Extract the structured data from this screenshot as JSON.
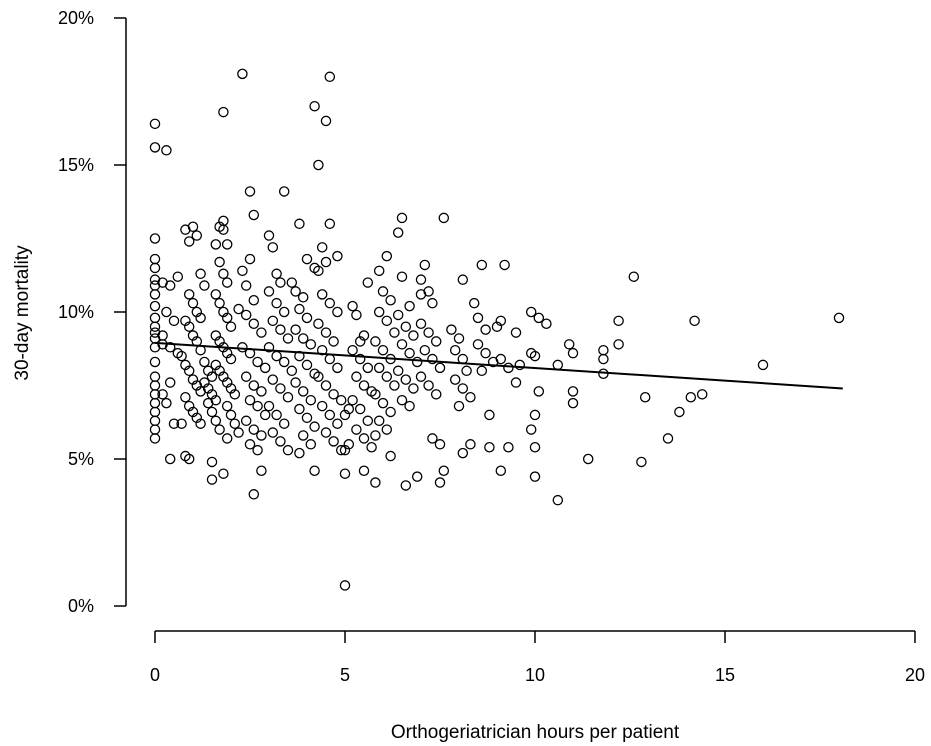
{
  "chart_data": {
    "type": "scatter",
    "title": "",
    "xlabel": "Orthogeriatrician hours per patient",
    "ylabel": "30-day mortality",
    "xlim": [
      0,
      20
    ],
    "ylim": [
      0,
      20
    ],
    "x_ticks": [
      "0",
      "5",
      "10",
      "15",
      "20"
    ],
    "y_ticks": [
      "0%",
      "5%",
      "10%",
      "15%",
      "20%"
    ],
    "grid": false,
    "legend": "none",
    "trendline": {
      "x": [
        0,
        18.1
      ],
      "y": [
        8.95,
        7.4
      ]
    },
    "points": [
      [
        0.0,
        16.4
      ],
      [
        0.0,
        15.6
      ],
      [
        0.3,
        15.5
      ],
      [
        0.0,
        12.5
      ],
      [
        0.0,
        11.8
      ],
      [
        0.0,
        11.5
      ],
      [
        0.0,
        11.1
      ],
      [
        0.0,
        10.9
      ],
      [
        0.0,
        10.6
      ],
      [
        0.0,
        10.2
      ],
      [
        0.0,
        9.8
      ],
      [
        0.0,
        9.5
      ],
      [
        0.0,
        9.3
      ],
      [
        0.0,
        9.1
      ],
      [
        0.0,
        8.8
      ],
      [
        0.0,
        8.3
      ],
      [
        0.0,
        7.8
      ],
      [
        0.0,
        7.5
      ],
      [
        0.0,
        7.2
      ],
      [
        0.0,
        6.9
      ],
      [
        0.0,
        6.6
      ],
      [
        0.0,
        6.3
      ],
      [
        0.0,
        6.0
      ],
      [
        0.0,
        5.7
      ],
      [
        0.2,
        11.0
      ],
      [
        0.4,
        10.9
      ],
      [
        0.6,
        11.2
      ],
      [
        0.3,
        10.0
      ],
      [
        0.5,
        9.7
      ],
      [
        0.2,
        9.2
      ],
      [
        0.4,
        8.8
      ],
      [
        0.6,
        8.6
      ],
      [
        0.2,
        8.9
      ],
      [
        0.4,
        7.6
      ],
      [
        0.2,
        7.2
      ],
      [
        0.3,
        6.9
      ],
      [
        0.5,
        6.2
      ],
      [
        0.4,
        5.0
      ],
      [
        0.7,
        6.2
      ],
      [
        0.8,
        5.1
      ],
      [
        0.9,
        5.0
      ],
      [
        0.8,
        12.8
      ],
      [
        0.9,
        12.4
      ],
      [
        1.0,
        12.9
      ],
      [
        1.1,
        12.6
      ],
      [
        1.2,
        11.3
      ],
      [
        1.3,
        10.9
      ],
      [
        0.9,
        10.6
      ],
      [
        1.0,
        10.3
      ],
      [
        1.1,
        10.0
      ],
      [
        1.2,
        9.8
      ],
      [
        0.8,
        9.7
      ],
      [
        0.9,
        9.5
      ],
      [
        1.0,
        9.2
      ],
      [
        1.1,
        9.0
      ],
      [
        1.2,
        8.7
      ],
      [
        0.7,
        8.5
      ],
      [
        0.8,
        8.2
      ],
      [
        0.9,
        8.0
      ],
      [
        1.0,
        7.7
      ],
      [
        1.1,
        7.5
      ],
      [
        1.2,
        7.3
      ],
      [
        0.8,
        7.1
      ],
      [
        0.9,
        6.8
      ],
      [
        1.0,
        6.6
      ],
      [
        1.1,
        6.4
      ],
      [
        1.2,
        6.2
      ],
      [
        1.3,
        8.3
      ],
      [
        1.4,
        8.0
      ],
      [
        1.5,
        7.8
      ],
      [
        1.3,
        7.6
      ],
      [
        1.4,
        7.4
      ],
      [
        1.5,
        7.2
      ],
      [
        1.6,
        7.0
      ],
      [
        1.4,
        6.9
      ],
      [
        1.5,
        6.6
      ],
      [
        1.6,
        6.3
      ],
      [
        1.7,
        6.0
      ],
      [
        1.5,
        4.9
      ],
      [
        1.5,
        4.3
      ],
      [
        1.7,
        12.9
      ],
      [
        1.8,
        13.1
      ],
      [
        1.8,
        12.8
      ],
      [
        1.6,
        12.3
      ],
      [
        1.9,
        12.3
      ],
      [
        1.7,
        11.7
      ],
      [
        1.8,
        11.3
      ],
      [
        1.9,
        11.0
      ],
      [
        1.6,
        10.6
      ],
      [
        1.7,
        10.3
      ],
      [
        1.8,
        10.0
      ],
      [
        1.9,
        9.8
      ],
      [
        2.0,
        9.5
      ],
      [
        1.6,
        9.2
      ],
      [
        1.7,
        9.0
      ],
      [
        1.8,
        8.8
      ],
      [
        1.9,
        8.6
      ],
      [
        2.0,
        8.4
      ],
      [
        1.6,
        8.2
      ],
      [
        1.7,
        8.0
      ],
      [
        1.8,
        7.8
      ],
      [
        1.9,
        7.6
      ],
      [
        2.0,
        7.4
      ],
      [
        2.1,
        7.2
      ],
      [
        1.9,
        6.8
      ],
      [
        2.0,
        6.5
      ],
      [
        2.1,
        6.2
      ],
      [
        2.2,
        5.9
      ],
      [
        1.9,
        5.7
      ],
      [
        1.8,
        4.5
      ],
      [
        2.3,
        18.1
      ],
      [
        1.8,
        16.8
      ],
      [
        2.5,
        14.1
      ],
      [
        2.6,
        13.3
      ],
      [
        2.3,
        11.4
      ],
      [
        2.5,
        11.8
      ],
      [
        2.4,
        10.9
      ],
      [
        2.6,
        10.4
      ],
      [
        2.2,
        10.1
      ],
      [
        2.4,
        9.9
      ],
      [
        2.6,
        9.6
      ],
      [
        2.8,
        9.3
      ],
      [
        2.3,
        8.8
      ],
      [
        2.5,
        8.6
      ],
      [
        2.7,
        8.3
      ],
      [
        2.9,
        8.1
      ],
      [
        2.4,
        7.8
      ],
      [
        2.6,
        7.5
      ],
      [
        2.8,
        7.3
      ],
      [
        2.5,
        7.0
      ],
      [
        2.7,
        6.8
      ],
      [
        2.9,
        6.5
      ],
      [
        2.4,
        6.3
      ],
      [
        2.6,
        6.0
      ],
      [
        2.8,
        5.8
      ],
      [
        2.5,
        5.5
      ],
      [
        2.7,
        5.3
      ],
      [
        2.8,
        4.6
      ],
      [
        2.6,
        3.8
      ],
      [
        3.0,
        12.6
      ],
      [
        3.1,
        12.2
      ],
      [
        3.2,
        11.3
      ],
      [
        3.3,
        11.0
      ],
      [
        3.0,
        10.7
      ],
      [
        3.2,
        10.3
      ],
      [
        3.4,
        10.0
      ],
      [
        3.1,
        9.7
      ],
      [
        3.3,
        9.4
      ],
      [
        3.5,
        9.1
      ],
      [
        3.0,
        8.8
      ],
      [
        3.2,
        8.5
      ],
      [
        3.4,
        8.3
      ],
      [
        3.6,
        8.0
      ],
      [
        3.1,
        7.7
      ],
      [
        3.3,
        7.4
      ],
      [
        3.5,
        7.1
      ],
      [
        3.0,
        6.8
      ],
      [
        3.2,
        6.5
      ],
      [
        3.4,
        6.2
      ],
      [
        3.1,
        5.9
      ],
      [
        3.3,
        5.6
      ],
      [
        3.5,
        5.3
      ],
      [
        3.4,
        14.1
      ],
      [
        3.6,
        11.0
      ],
      [
        3.7,
        10.7
      ],
      [
        3.9,
        10.5
      ],
      [
        3.8,
        10.1
      ],
      [
        4.0,
        9.8
      ],
      [
        3.7,
        9.4
      ],
      [
        3.9,
        9.1
      ],
      [
        4.1,
        8.9
      ],
      [
        3.8,
        8.5
      ],
      [
        4.0,
        8.2
      ],
      [
        4.2,
        7.9
      ],
      [
        3.7,
        7.6
      ],
      [
        3.9,
        7.3
      ],
      [
        4.1,
        7.0
      ],
      [
        3.8,
        6.7
      ],
      [
        4.0,
        6.4
      ],
      [
        4.2,
        6.1
      ],
      [
        3.9,
        5.8
      ],
      [
        4.1,
        5.5
      ],
      [
        3.8,
        5.2
      ],
      [
        4.2,
        4.6
      ],
      [
        3.8,
        13.0
      ],
      [
        4.0,
        11.8
      ],
      [
        4.2,
        11.5
      ],
      [
        4.2,
        17.0
      ],
      [
        4.3,
        15.0
      ],
      [
        4.5,
        16.5
      ],
      [
        4.6,
        18.0
      ],
      [
        4.6,
        13.0
      ],
      [
        4.4,
        12.2
      ],
      [
        4.5,
        11.7
      ],
      [
        4.3,
        11.4
      ],
      [
        4.4,
        10.6
      ],
      [
        4.6,
        10.3
      ],
      [
        4.8,
        10.0
      ],
      [
        4.3,
        9.6
      ],
      [
        4.5,
        9.3
      ],
      [
        4.7,
        9.0
      ],
      [
        4.4,
        8.7
      ],
      [
        4.6,
        8.4
      ],
      [
        4.8,
        8.1
      ],
      [
        4.3,
        7.8
      ],
      [
        4.5,
        7.5
      ],
      [
        4.7,
        7.2
      ],
      [
        4.9,
        7.0
      ],
      [
        4.4,
        6.8
      ],
      [
        4.6,
        6.5
      ],
      [
        4.8,
        6.2
      ],
      [
        4.5,
        5.9
      ],
      [
        4.7,
        5.6
      ],
      [
        4.9,
        5.3
      ],
      [
        4.8,
        11.9
      ],
      [
        5.0,
        6.5
      ],
      [
        5.1,
        6.7
      ],
      [
        5.0,
        5.3
      ],
      [
        5.1,
        5.5
      ],
      [
        5.0,
        4.5
      ],
      [
        5.0,
        0.7
      ],
      [
        5.2,
        10.2
      ],
      [
        5.3,
        9.9
      ],
      [
        5.4,
        9.0
      ],
      [
        5.5,
        9.2
      ],
      [
        5.2,
        8.7
      ],
      [
        5.4,
        8.4
      ],
      [
        5.6,
        8.1
      ],
      [
        5.3,
        7.8
      ],
      [
        5.5,
        7.5
      ],
      [
        5.7,
        7.3
      ],
      [
        5.2,
        7.0
      ],
      [
        5.4,
        6.7
      ],
      [
        5.6,
        6.3
      ],
      [
        5.3,
        6.0
      ],
      [
        5.5,
        5.7
      ],
      [
        5.7,
        5.4
      ],
      [
        5.5,
        4.6
      ],
      [
        5.8,
        4.2
      ],
      [
        5.9,
        11.4
      ],
      [
        6.1,
        11.9
      ],
      [
        5.6,
        11.0
      ],
      [
        6.0,
        10.7
      ],
      [
        6.2,
        10.4
      ],
      [
        5.9,
        10.0
      ],
      [
        6.1,
        9.7
      ],
      [
        6.3,
        9.3
      ],
      [
        5.8,
        9.0
      ],
      [
        6.0,
        8.7
      ],
      [
        6.2,
        8.4
      ],
      [
        5.9,
        8.1
      ],
      [
        6.1,
        7.8
      ],
      [
        6.3,
        7.5
      ],
      [
        5.8,
        7.2
      ],
      [
        6.0,
        6.9
      ],
      [
        6.2,
        6.6
      ],
      [
        5.9,
        6.3
      ],
      [
        6.1,
        6.0
      ],
      [
        5.8,
        5.8
      ],
      [
        6.2,
        5.1
      ],
      [
        6.5,
        13.2
      ],
      [
        6.4,
        12.7
      ],
      [
        6.5,
        11.2
      ],
      [
        6.7,
        10.2
      ],
      [
        6.4,
        9.9
      ],
      [
        6.6,
        9.5
      ],
      [
        6.8,
        9.2
      ],
      [
        6.5,
        8.9
      ],
      [
        6.7,
        8.6
      ],
      [
        6.9,
        8.3
      ],
      [
        6.4,
        8.0
      ],
      [
        6.6,
        7.7
      ],
      [
        6.8,
        7.4
      ],
      [
        6.5,
        7.0
      ],
      [
        6.7,
        6.8
      ],
      [
        6.6,
        4.1
      ],
      [
        6.9,
        4.4
      ],
      [
        7.0,
        11.1
      ],
      [
        7.1,
        11.6
      ],
      [
        7.2,
        10.7
      ],
      [
        7.0,
        10.6
      ],
      [
        7.3,
        10.3
      ],
      [
        7.0,
        9.6
      ],
      [
        7.2,
        9.3
      ],
      [
        7.4,
        9.0
      ],
      [
        7.1,
        8.7
      ],
      [
        7.3,
        8.4
      ],
      [
        7.5,
        8.1
      ],
      [
        7.0,
        7.8
      ],
      [
        7.2,
        7.5
      ],
      [
        7.4,
        7.2
      ],
      [
        7.3,
        5.7
      ],
      [
        7.5,
        5.5
      ],
      [
        7.6,
        4.6
      ],
      [
        7.5,
        4.2
      ],
      [
        7.6,
        13.2
      ],
      [
        7.8,
        9.4
      ],
      [
        8.0,
        9.1
      ],
      [
        7.9,
        8.7
      ],
      [
        8.1,
        8.4
      ],
      [
        8.2,
        8.0
      ],
      [
        7.9,
        7.7
      ],
      [
        8.1,
        7.4
      ],
      [
        8.3,
        7.1
      ],
      [
        8.0,
        6.8
      ],
      [
        8.1,
        11.1
      ],
      [
        8.1,
        5.2
      ],
      [
        8.3,
        5.5
      ],
      [
        8.4,
        10.3
      ],
      [
        8.6,
        11.6
      ],
      [
        8.5,
        9.8
      ],
      [
        8.7,
        9.4
      ],
      [
        8.5,
        8.9
      ],
      [
        8.7,
        8.6
      ],
      [
        8.9,
        8.3
      ],
      [
        8.6,
        8.0
      ],
      [
        8.8,
        6.5
      ],
      [
        8.8,
        5.4
      ],
      [
        9.0,
        9.5
      ],
      [
        9.1,
        9.7
      ],
      [
        9.2,
        11.6
      ],
      [
        9.1,
        8.4
      ],
      [
        9.3,
        8.1
      ],
      [
        9.1,
        4.6
      ],
      [
        9.3,
        5.4
      ],
      [
        9.5,
        9.3
      ],
      [
        9.6,
        8.2
      ],
      [
        9.5,
        7.6
      ],
      [
        9.9,
        10.0
      ],
      [
        9.9,
        8.6
      ],
      [
        10.0,
        8.5
      ],
      [
        10.1,
        9.8
      ],
      [
        10.1,
        7.3
      ],
      [
        10.0,
        6.5
      ],
      [
        9.9,
        6.0
      ],
      [
        10.0,
        5.4
      ],
      [
        10.0,
        4.4
      ],
      [
        10.3,
        9.6
      ],
      [
        10.6,
        8.2
      ],
      [
        10.6,
        3.6
      ],
      [
        10.9,
        8.9
      ],
      [
        11.0,
        8.6
      ],
      [
        11.0,
        7.3
      ],
      [
        11.0,
        6.9
      ],
      [
        11.4,
        5.0
      ],
      [
        11.8,
        8.7
      ],
      [
        11.8,
        8.4
      ],
      [
        11.8,
        7.9
      ],
      [
        12.2,
        9.7
      ],
      [
        12.2,
        8.9
      ],
      [
        12.6,
        11.2
      ],
      [
        12.8,
        4.9
      ],
      [
        12.9,
        7.1
      ],
      [
        13.5,
        5.7
      ],
      [
        13.8,
        6.6
      ],
      [
        14.1,
        7.1
      ],
      [
        14.2,
        9.7
      ],
      [
        14.4,
        7.2
      ],
      [
        16.0,
        8.2
      ],
      [
        18.0,
        9.8
      ]
    ]
  }
}
